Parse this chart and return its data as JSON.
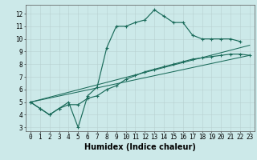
{
  "xlabel": "Humidex (Indice chaleur)",
  "bg_color": "#cce9e9",
  "grid_color": "#c0d8d8",
  "line_color": "#1a6b5a",
  "xlim": [
    -0.5,
    23.5
  ],
  "ylim": [
    2.7,
    12.7
  ],
  "xticks": [
    0,
    1,
    2,
    3,
    4,
    5,
    6,
    7,
    8,
    9,
    10,
    11,
    12,
    13,
    14,
    15,
    16,
    17,
    18,
    19,
    20,
    21,
    22,
    23
  ],
  "yticks": [
    3,
    4,
    5,
    6,
    7,
    8,
    9,
    10,
    11,
    12
  ],
  "curve1_x": [
    0,
    1,
    2,
    3,
    4,
    5,
    6,
    7,
    8,
    9,
    10,
    11,
    12,
    13,
    14,
    15,
    16,
    17,
    18,
    19,
    20,
    21,
    22
  ],
  "curve1_y": [
    5.0,
    4.5,
    4.0,
    4.5,
    5.0,
    3.0,
    5.5,
    6.2,
    9.3,
    11.0,
    11.0,
    11.3,
    11.5,
    12.3,
    11.8,
    11.3,
    11.3,
    10.3,
    10.0,
    10.0,
    10.0,
    10.0,
    9.8
  ],
  "curve2_x": [
    0,
    1,
    2,
    3,
    4,
    5,
    6,
    7,
    8,
    9,
    10,
    11,
    12,
    13,
    14,
    15,
    16,
    17,
    18,
    19,
    20,
    21,
    22,
    23
  ],
  "curve2_y": [
    5.0,
    4.5,
    4.0,
    4.5,
    4.8,
    4.8,
    5.3,
    5.5,
    6.0,
    6.3,
    6.8,
    7.1,
    7.4,
    7.6,
    7.8,
    8.0,
    8.2,
    8.4,
    8.5,
    8.6,
    8.7,
    8.8,
    8.8,
    8.7
  ],
  "line1_x": [
    0,
    23
  ],
  "line1_y": [
    5.0,
    8.7
  ],
  "line2_x": [
    0,
    23
  ],
  "line2_y": [
    5.0,
    9.5
  ],
  "font_size_ticks": 5.5,
  "font_size_label": 7.0
}
